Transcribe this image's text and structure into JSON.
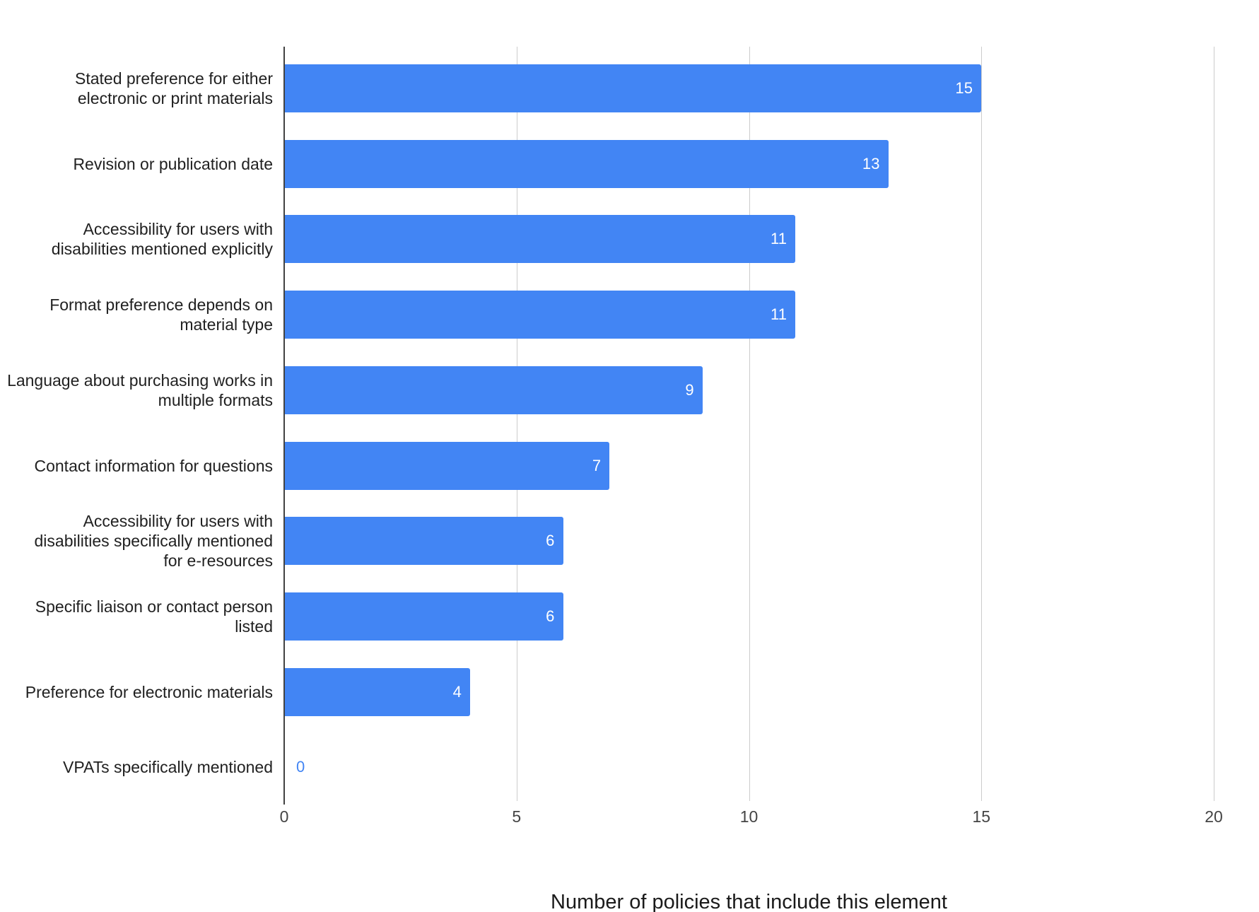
{
  "chart_data": {
    "type": "bar",
    "orientation": "horizontal",
    "title": "",
    "categories": [
      "Stated preference for either\nelectronic or print materials",
      "Revision or publication date",
      "Accessibility for users with\ndisabilities mentioned explicitly",
      "Format preference depends on\nmaterial type",
      "Language about purchasing works in\nmultiple formats",
      "Contact information for questions",
      "Accessibility for users with\ndisabilities specifically mentioned\nfor e-resources",
      "Specific liaison or contact person\nlisted",
      "Preference for electronic materials",
      "VPATs specifically mentioned"
    ],
    "values": [
      15,
      13,
      11,
      11,
      9,
      7,
      6,
      6,
      4,
      0
    ],
    "xlabel": "Number of policies that include this element",
    "ylabel": "",
    "xlim": [
      0,
      20
    ],
    "x_ticks": [
      0,
      5,
      10,
      15,
      20
    ],
    "grid": true,
    "legend": "none",
    "colors": {
      "bar": "#4285f4",
      "value_label_inside": "#ffffff",
      "value_label_zero": "#4285f4",
      "gridline": "#cccccc",
      "baseline": "#424242",
      "category_label": "#212121",
      "tick_label": "#444444",
      "axis_title": "#1a1a1a",
      "background": "#ffffff"
    }
  }
}
